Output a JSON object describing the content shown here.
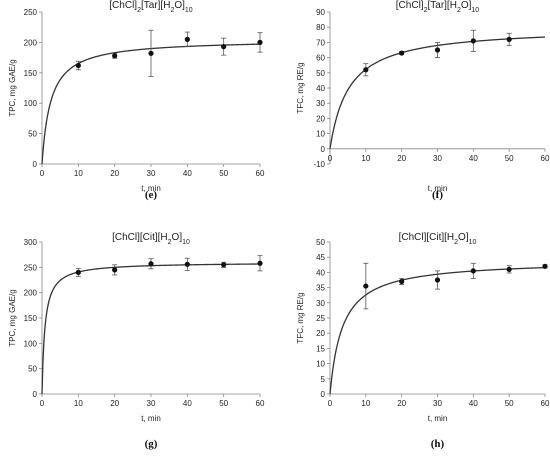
{
  "chart_data": [
    {
      "type": "scatter",
      "panel_label": "(e)",
      "title_base": "[ChCl]",
      "title_parts": [
        {
          "text": "[ChCl]",
          "sub": false
        },
        {
          "text": "2",
          "sub": true
        },
        {
          "text": "[Tar][H",
          "sub": false
        },
        {
          "text": "2",
          "sub": true
        },
        {
          "text": "O]",
          "sub": false
        },
        {
          "text": "10",
          "sub": true
        }
      ],
      "xlabel": "t, min",
      "ylabel": "TPC, mg GAE/g",
      "xlim": [
        0,
        60
      ],
      "ylim": [
        0,
        250
      ],
      "xticks": [
        0,
        10,
        20,
        30,
        40,
        50,
        60
      ],
      "yticks": [
        0,
        50,
        100,
        150,
        200,
        250
      ],
      "grid": false,
      "series": [
        {
          "x": [
            10,
            20,
            30,
            40,
            50,
            60
          ],
          "y": [
            162,
            178,
            182,
            205,
            193,
            200
          ],
          "yerr": [
            7,
            4,
            38,
            12,
            14,
            16
          ]
        }
      ],
      "fit": {
        "a": 205,
        "b": 2.4
      }
    },
    {
      "type": "scatter",
      "panel_label": "(f)",
      "title_parts": [
        {
          "text": "[ChCl]",
          "sub": false
        },
        {
          "text": "2",
          "sub": true
        },
        {
          "text": "[Tar][H",
          "sub": false
        },
        {
          "text": "2",
          "sub": true
        },
        {
          "text": "O]",
          "sub": false
        },
        {
          "text": "10",
          "sub": true
        }
      ],
      "xlabel": "t, min",
      "ylabel": "TFC, mg RE/g",
      "xlim": [
        0,
        60
      ],
      "ylim": [
        -10,
        90
      ],
      "xticks": [
        0,
        10,
        20,
        30,
        40,
        50,
        60
      ],
      "yticks": [
        -10,
        0,
        10,
        20,
        30,
        40,
        50,
        60,
        70,
        80,
        90
      ],
      "grid": false,
      "series": [
        {
          "x": [
            10,
            20,
            30,
            40,
            50,
            60
          ],
          "y": [
            52,
            63,
            65,
            71,
            72,
            null
          ],
          "yerr": [
            4,
            1,
            5,
            7,
            4,
            null
          ]
        }
      ],
      "fit": {
        "a": 80,
        "b": 5.3
      }
    },
    {
      "type": "scatter",
      "panel_label": "(g)",
      "title_parts": [
        {
          "text": "[ChCl][Cit][H",
          "sub": false
        },
        {
          "text": "2",
          "sub": true
        },
        {
          "text": "O]",
          "sub": false
        },
        {
          "text": "10",
          "sub": true
        }
      ],
      "xlabel": "t, min",
      "ylabel": "TPC, mg GAE/g",
      "xlim": [
        0,
        60
      ],
      "ylim": [
        0,
        300
      ],
      "xticks": [
        0,
        10,
        20,
        30,
        40,
        50,
        60
      ],
      "yticks": [
        0,
        50,
        100,
        150,
        200,
        250,
        300
      ],
      "grid": false,
      "series": [
        {
          "x": [
            10,
            20,
            30,
            40,
            50,
            60
          ],
          "y": [
            240,
            245,
            257,
            256,
            255,
            258
          ],
          "yerr": [
            8,
            10,
            10,
            12,
            5,
            15
          ]
        }
      ],
      "fit": {
        "a": 260,
        "b": 0.8
      }
    },
    {
      "type": "scatter",
      "panel_label": "(h)",
      "title_parts": [
        {
          "text": "[ChCl][Cit][H",
          "sub": false
        },
        {
          "text": "2",
          "sub": true
        },
        {
          "text": "O]",
          "sub": false
        },
        {
          "text": "10",
          "sub": true
        }
      ],
      "xlabel": "t, min",
      "ylabel": "TFC, mg RE/g",
      "xlim": [
        0,
        60
      ],
      "ylim": [
        0,
        50
      ],
      "xticks": [
        0,
        10,
        20,
        30,
        40,
        50,
        60
      ],
      "yticks": [
        0,
        5,
        10,
        15,
        20,
        25,
        30,
        35,
        40,
        45,
        50
      ],
      "grid": false,
      "series": [
        {
          "x": [
            10,
            20,
            30,
            40,
            50,
            60
          ],
          "y": [
            35.5,
            37,
            37.5,
            40.5,
            41,
            42
          ],
          "yerr": [
            7.5,
            1,
            3,
            2.5,
            1.2,
            0.5
          ]
        }
      ],
      "fit": {
        "a": 44,
        "b": 3.5
      }
    }
  ],
  "style": {
    "line_color": "#333333",
    "axis_color": "#888888",
    "marker_color": "#111111",
    "errorbar_color": "#555555"
  }
}
